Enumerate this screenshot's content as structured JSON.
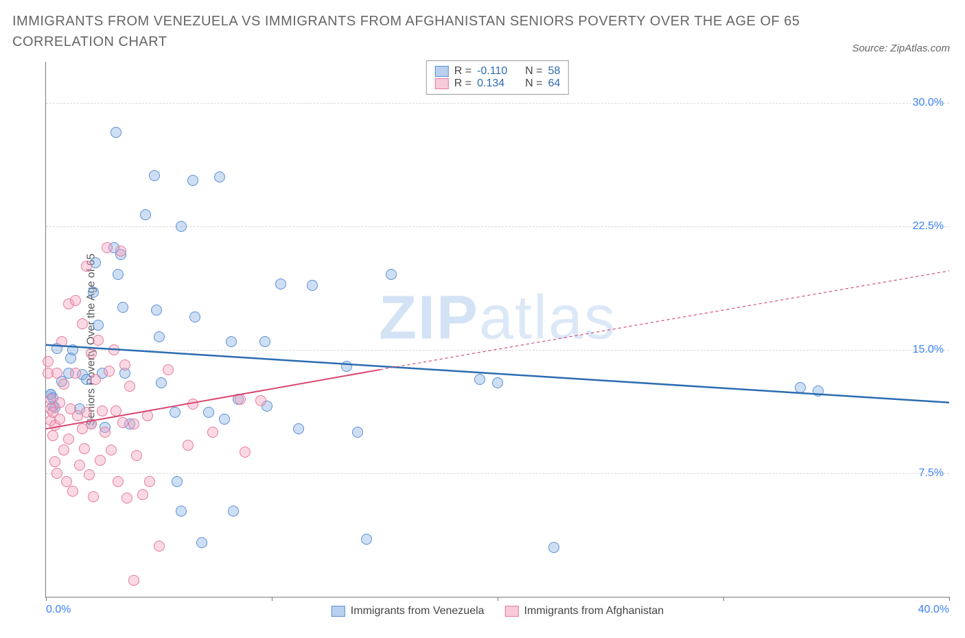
{
  "title": "IMMIGRANTS FROM VENEZUELA VS IMMIGRANTS FROM AFGHANISTAN SENIORS POVERTY OVER THE AGE OF 65 CORRELATION CHART",
  "source": "Source: ZipAtlas.com",
  "ylabel": "Seniors Poverty Over the Age of 65",
  "watermark_zip": "ZIP",
  "watermark_atlas": "atlas",
  "chart": {
    "type": "scatter",
    "xlim": [
      0,
      40
    ],
    "ylim": [
      0,
      32.5
    ],
    "yticks": [
      7.5,
      15.0,
      22.5,
      30.0
    ],
    "ytick_labels": [
      "7.5%",
      "15.0%",
      "22.5%",
      "30.0%"
    ],
    "xticks": [
      0,
      10,
      20,
      30,
      40
    ],
    "xtick_left_label": "0.0%",
    "xtick_right_label": "40.0%",
    "grid_color": "#d8d8d8",
    "axis_color": "#7a7a7a",
    "background": "#ffffff",
    "ytick_color": "#3b82f6",
    "marker_radius": 8,
    "series": [
      {
        "name": "Immigrants from Venezuela",
        "color_stroke": "#5a8fd6",
        "color_fill": "rgba(115,163,224,0.35)",
        "trend_color": "#2b6cb0",
        "trend_width": 2.5,
        "trend_dash": "none",
        "trend_x_range": [
          0,
          40
        ],
        "trend_y_range": [
          15.3,
          11.8
        ],
        "R": "-0.110",
        "N": "58",
        "points": [
          [
            0.2,
            12.3
          ],
          [
            0.2,
            12.3
          ],
          [
            0.3,
            12.1
          ],
          [
            0.3,
            11.6
          ],
          [
            0.5,
            15.1
          ],
          [
            0.7,
            13.1
          ],
          [
            0.4,
            11.5
          ],
          [
            1.0,
            13.6
          ],
          [
            1.1,
            14.5
          ],
          [
            1.2,
            15.0
          ],
          [
            1.6,
            13.5
          ],
          [
            1.8,
            13.2
          ],
          [
            1.5,
            11.4
          ],
          [
            2.0,
            10.5
          ],
          [
            2.2,
            20.3
          ],
          [
            2.1,
            18.5
          ],
          [
            2.3,
            16.5
          ],
          [
            2.5,
            13.6
          ],
          [
            2.6,
            10.3
          ],
          [
            3.1,
            28.2
          ],
          [
            3.0,
            21.2
          ],
          [
            3.3,
            20.8
          ],
          [
            3.2,
            19.6
          ],
          [
            3.4,
            17.6
          ],
          [
            3.5,
            13.6
          ],
          [
            3.7,
            10.5
          ],
          [
            4.4,
            23.2
          ],
          [
            4.8,
            25.6
          ],
          [
            4.9,
            17.4
          ],
          [
            5.0,
            15.8
          ],
          [
            5.1,
            13.0
          ],
          [
            5.7,
            11.2
          ],
          [
            5.8,
            7.0
          ],
          [
            6.0,
            22.5
          ],
          [
            6.0,
            5.2
          ],
          [
            6.5,
            25.3
          ],
          [
            6.6,
            17.0
          ],
          [
            6.9,
            3.3
          ],
          [
            7.2,
            11.2
          ],
          [
            7.7,
            25.5
          ],
          [
            7.9,
            10.8
          ],
          [
            8.2,
            15.5
          ],
          [
            8.3,
            5.2
          ],
          [
            8.5,
            12.0
          ],
          [
            9.7,
            15.5
          ],
          [
            9.8,
            11.6
          ],
          [
            10.4,
            19.0
          ],
          [
            11.2,
            10.2
          ],
          [
            11.8,
            18.9
          ],
          [
            13.3,
            14.0
          ],
          [
            13.8,
            10.0
          ],
          [
            14.2,
            3.5
          ],
          [
            15.3,
            19.6
          ],
          [
            19.2,
            13.2
          ],
          [
            20.0,
            13.0
          ],
          [
            22.5,
            3.0
          ],
          [
            33.4,
            12.7
          ],
          [
            34.2,
            12.5
          ]
        ]
      },
      {
        "name": "Immigrants from Afghanistan",
        "color_stroke": "#e47a9a",
        "color_fill": "rgba(244,160,188,0.4)",
        "trend_color": "#d9466e",
        "trend_width": 2,
        "trend_dash_after": "4,4",
        "trend_solid_x": [
          0,
          14.8
        ],
        "trend_solid_y": [
          10.2,
          13.8
        ],
        "trend_dash_x": [
          14.8,
          40
        ],
        "trend_dash_y": [
          13.8,
          19.8
        ],
        "R": "0.134",
        "N": "64",
        "points": [
          [
            0.1,
            14.3
          ],
          [
            0.1,
            13.6
          ],
          [
            0.2,
            12.0
          ],
          [
            0.2,
            11.4
          ],
          [
            0.2,
            10.7
          ],
          [
            0.3,
            9.8
          ],
          [
            0.3,
            11.2
          ],
          [
            0.4,
            10.4
          ],
          [
            0.4,
            8.2
          ],
          [
            0.5,
            13.6
          ],
          [
            0.5,
            7.5
          ],
          [
            0.6,
            11.8
          ],
          [
            0.6,
            10.8
          ],
          [
            0.7,
            15.5
          ],
          [
            0.8,
            12.9
          ],
          [
            0.8,
            8.9
          ],
          [
            0.9,
            7.0
          ],
          [
            1.0,
            17.8
          ],
          [
            1.0,
            9.6
          ],
          [
            1.1,
            11.4
          ],
          [
            1.2,
            6.4
          ],
          [
            1.3,
            18.0
          ],
          [
            1.3,
            13.6
          ],
          [
            1.4,
            11.0
          ],
          [
            1.5,
            8.0
          ],
          [
            1.6,
            16.6
          ],
          [
            1.6,
            10.2
          ],
          [
            1.7,
            9.0
          ],
          [
            1.8,
            20.1
          ],
          [
            1.8,
            11.2
          ],
          [
            1.9,
            7.4
          ],
          [
            2.0,
            14.8
          ],
          [
            2.0,
            10.5
          ],
          [
            2.1,
            6.1
          ],
          [
            2.2,
            13.2
          ],
          [
            2.3,
            15.6
          ],
          [
            2.4,
            8.3
          ],
          [
            2.5,
            11.3
          ],
          [
            2.6,
            10.0
          ],
          [
            2.7,
            21.2
          ],
          [
            2.8,
            13.7
          ],
          [
            2.9,
            8.9
          ],
          [
            3.0,
            15.0
          ],
          [
            3.1,
            11.3
          ],
          [
            3.2,
            7.0
          ],
          [
            3.3,
            21.0
          ],
          [
            3.4,
            10.6
          ],
          [
            3.5,
            14.1
          ],
          [
            3.6,
            6.0
          ],
          [
            3.7,
            12.8
          ],
          [
            3.9,
            10.5
          ],
          [
            3.9,
            1.0
          ],
          [
            4.0,
            8.6
          ],
          [
            4.3,
            6.2
          ],
          [
            4.5,
            11.0
          ],
          [
            4.6,
            7.0
          ],
          [
            5.0,
            3.1
          ],
          [
            5.4,
            13.8
          ],
          [
            6.3,
            9.2
          ],
          [
            6.5,
            11.7
          ],
          [
            7.4,
            10.0
          ],
          [
            8.6,
            12.0
          ],
          [
            8.8,
            8.8
          ],
          [
            9.5,
            11.9
          ]
        ]
      }
    ]
  },
  "legend_top": {
    "r_label": "R =",
    "n_label": "N ="
  },
  "legend_bottom": {
    "items": [
      "Immigrants from Venezuela",
      "Immigrants from Afghanistan"
    ]
  }
}
